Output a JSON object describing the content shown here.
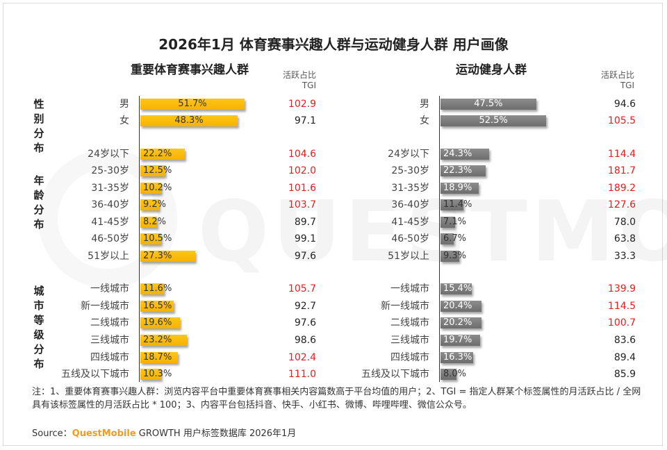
{
  "title": "2026年1月 体育赛事兴趣人群与运动健身人群 用户画像",
  "watermark": "QUESTMOBILE",
  "colors": {
    "left_bar": "#f6b100",
    "right_bar": "#7a7a7a",
    "tgi_high": "#e02020"
  },
  "left_panel": {
    "title": "重要体育赛事兴趣人群",
    "tgi_header_line1": "活跃占比",
    "tgi_header_line2": "TGI"
  },
  "right_panel": {
    "title": "运动健身人群",
    "tgi_header_line1": "活跃占比",
    "tgi_header_line2": "TGI"
  },
  "groups": [
    {
      "label": "性别分布",
      "chars": [
        "性",
        "别",
        "分",
        "布"
      ]
    },
    {
      "label": "年龄分布",
      "chars": [
        "年",
        "龄",
        "分",
        "布"
      ]
    },
    {
      "label": "城市等级分布",
      "chars": [
        "城",
        "市",
        "等",
        "级",
        "分",
        "布"
      ]
    }
  ],
  "chart_data": [
    {
      "type": "bar",
      "title": "重要体育赛事兴趣人群",
      "categories": [
        "男",
        "女",
        "24岁以下",
        "25-30岁",
        "31-35岁",
        "36-40岁",
        "41-45岁",
        "46-50岁",
        "51岁以上",
        "一线城市",
        "新一线城市",
        "二线城市",
        "三线城市",
        "四线城市",
        "五线及以下城市"
      ],
      "series": [
        {
          "values": [
            51.7,
            48.3,
            22.2,
            12.5,
            10.2,
            9.2,
            8.2,
            10.5,
            27.3,
            11.6,
            16.5,
            19.6,
            23.2,
            18.7,
            10.3
          ],
          "labels": [
            "51.7%",
            "48.3%",
            "22.2%",
            "12.5%",
            "10.2%",
            "9.2%",
            "8.2%",
            "10.5%",
            "27.3%",
            "11.6%",
            "16.5%",
            "19.6%",
            "23.2%",
            "18.7%",
            "10.3%"
          ]
        },
        {
          "name": "TGI",
          "values": [
            102.9,
            97.1,
            104.6,
            102.0,
            101.6,
            103.7,
            89.7,
            99.1,
            97.6,
            105.7,
            92.7,
            97.6,
            98.6,
            102.4,
            111.0
          ],
          "labels": [
            "102.9",
            "97.1",
            "104.6",
            "102.0",
            "101.6",
            "103.7",
            "89.7",
            "99.1",
            "97.6",
            "105.7",
            "92.7",
            "97.6",
            "98.6",
            "102.4",
            "111.0"
          ]
        }
      ]
    },
    {
      "type": "bar",
      "title": "运动健身人群",
      "categories": [
        "男",
        "女",
        "24岁以下",
        "25-30岁",
        "31-35岁",
        "36-40岁",
        "41-45岁",
        "46-50岁",
        "51岁以上",
        "一线城市",
        "新一线城市",
        "二线城市",
        "三线城市",
        "四线城市",
        "五线及以下城市"
      ],
      "series": [
        {
          "values": [
            47.5,
            52.5,
            24.3,
            22.3,
            18.9,
            11.4,
            7.1,
            6.7,
            9.3,
            15.4,
            20.4,
            20.2,
            19.7,
            16.3,
            8.0
          ],
          "labels": [
            "47.5%",
            "52.5%",
            "24.3%",
            "22.3%",
            "18.9%",
            "11.4%",
            "7.1%",
            "6.7%",
            "9.3%",
            "15.4%",
            "20.4%",
            "20.2%",
            "19.7%",
            "16.3%",
            "8.0%"
          ]
        },
        {
          "name": "TGI",
          "values": [
            94.6,
            105.5,
            114.4,
            181.7,
            189.2,
            127.6,
            78.0,
            63.8,
            33.3,
            139.9,
            114.5,
            100.7,
            83.6,
            89.4,
            85.9
          ],
          "labels": [
            "94.6",
            "105.5",
            "114.4",
            "181.7",
            "189.2",
            "127.6",
            "78.0",
            "63.8",
            "33.3",
            "139.9",
            "114.5",
            "100.7",
            "83.6",
            "89.4",
            "85.9"
          ]
        }
      ]
    }
  ],
  "note": "注：1、重要体育赛事兴趣人群：浏览内容平台中重要体育赛事相关内容篇数高于平台均值的用户；2、TGI = 指定人群某个标签属性的月活跃占比 / 全网具有该标签属性的月活跃占比 * 100；3、内容平台包括抖音、快手、小红书、微博、哔哩哔哩、微信公众号。",
  "source": {
    "prefix": "Source：",
    "brand": "QuestMobile",
    "suffix": " GROWTH 用户标签数据库  2026年1月"
  }
}
